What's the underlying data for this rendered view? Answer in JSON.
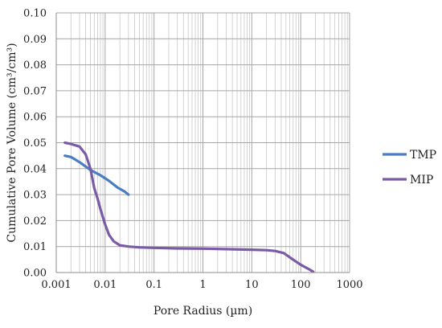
{
  "chart_data": {
    "type": "line",
    "xlabel": "Pore Radius (µm)",
    "ylabel": "Cumulative Pore Volume (cm³/cm³)",
    "xscale": "log",
    "xlim": [
      0.001,
      1000
    ],
    "ylim": [
      0,
      0.1
    ],
    "x_ticks": [
      0.001,
      0.01,
      0.1,
      1,
      10,
      100,
      1000
    ],
    "x_tick_labels": [
      "0.001",
      "0.01",
      "0.1",
      "1",
      "10",
      "100",
      "1000"
    ],
    "y_ticks": [
      0,
      0.01,
      0.02,
      0.03,
      0.04,
      0.05,
      0.06,
      0.07,
      0.08,
      0.09,
      0.1
    ],
    "y_tick_labels": [
      "0.00",
      "0.01",
      "0.02",
      "0.03",
      "0.04",
      "0.05",
      "0.06",
      "0.07",
      "0.08",
      "0.09",
      "0.10"
    ],
    "grid": {
      "major": true,
      "minor_x": true
    },
    "legend": "right",
    "series": [
      {
        "name": "TMP",
        "color": "#4a7ec2",
        "x": [
          0.0015,
          0.002,
          0.003,
          0.005,
          0.008,
          0.012,
          0.018,
          0.025,
          0.03
        ],
        "y": [
          0.045,
          0.0445,
          0.0425,
          0.0395,
          0.0375,
          0.0353,
          0.0327,
          0.0312,
          0.03
        ]
      },
      {
        "name": "MIP",
        "color": "#7b5aa6",
        "x": [
          0.0015,
          0.002,
          0.003,
          0.004,
          0.005,
          0.006,
          0.007,
          0.008,
          0.01,
          0.012,
          0.015,
          0.02,
          0.03,
          0.05,
          0.1,
          0.3,
          1,
          3,
          10,
          20,
          30,
          45,
          70,
          100,
          150,
          180
        ],
        "y": [
          0.05,
          0.0495,
          0.0485,
          0.0455,
          0.04,
          0.0325,
          0.0285,
          0.0245,
          0.0185,
          0.0145,
          0.012,
          0.0105,
          0.01,
          0.0097,
          0.0095,
          0.0093,
          0.0092,
          0.009,
          0.0088,
          0.0086,
          0.0083,
          0.0075,
          0.005,
          0.003,
          0.0012,
          0.0003
        ]
      }
    ]
  }
}
